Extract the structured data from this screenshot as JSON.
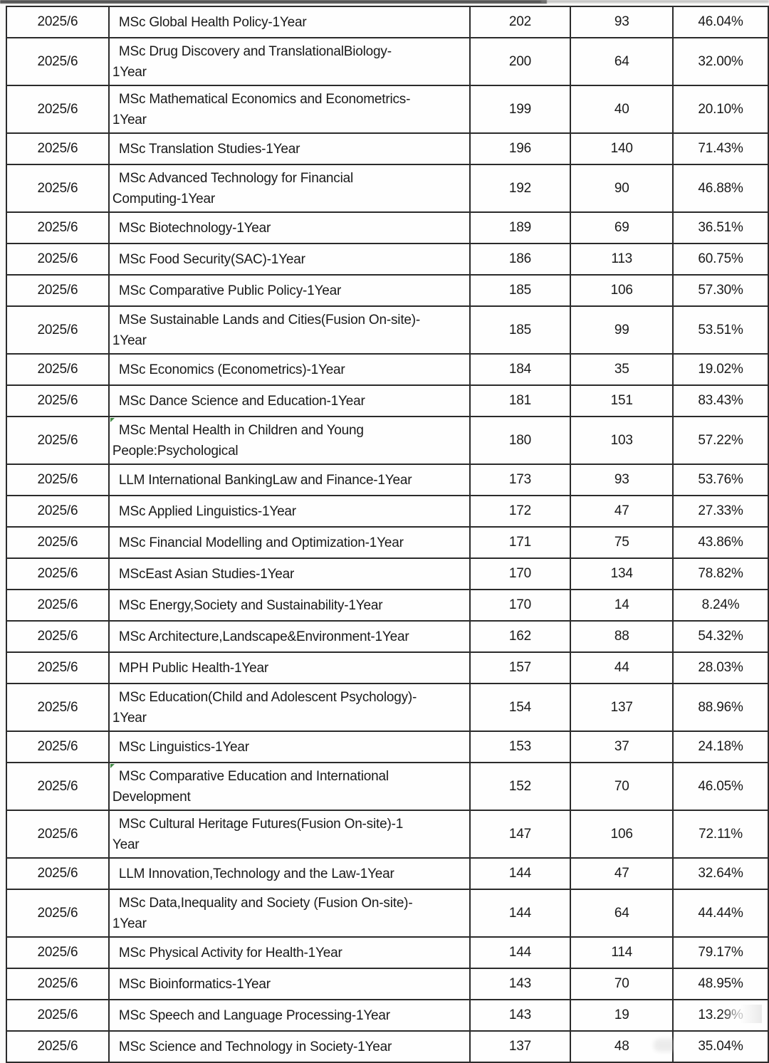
{
  "table": {
    "rows": [
      {
        "month": "2025/6",
        "program_lines": [
          "MSc Global Health Policy-1Year"
        ],
        "applicants": "202",
        "offers": "93",
        "rate": "46.04%"
      },
      {
        "month": "2025/6",
        "program_lines": [
          "MSc Drug Discovery and TranslationalBiology-",
          "1Year"
        ],
        "applicants": "200",
        "offers": "64",
        "rate": "32.00%"
      },
      {
        "month": "2025/6",
        "program_lines": [
          "MSc Mathematical Economics and Econometrics-",
          "1Year"
        ],
        "applicants": "199",
        "offers": "40",
        "rate": "20.10%"
      },
      {
        "month": "2025/6",
        "program_lines": [
          "MSc Translation Studies-1Year"
        ],
        "applicants": "196",
        "offers": "140",
        "rate": "71.43%"
      },
      {
        "month": "2025/6",
        "program_lines": [
          "MSc Advanced Technology for Financial",
          "Computing-1Year"
        ],
        "applicants": "192",
        "offers": "90",
        "rate": "46.88%"
      },
      {
        "month": "2025/6",
        "program_lines": [
          "MSc Biotechnology-1Year"
        ],
        "applicants": "189",
        "offers": "69",
        "rate": "36.51%"
      },
      {
        "month": "2025/6",
        "program_lines": [
          "MSc Food Security(SAC)-1Year"
        ],
        "applicants": "186",
        "offers": "113",
        "rate": "60.75%"
      },
      {
        "month": "2025/6",
        "program_lines": [
          "MSc Comparative Public Policy-1Year"
        ],
        "applicants": "185",
        "offers": "106",
        "rate": "57.30%"
      },
      {
        "month": "2025/6",
        "program_lines": [
          "MSe Sustainable Lands and Cities(Fusion On-site)-",
          "1Year"
        ],
        "applicants": "185",
        "offers": "99",
        "rate": "53.51%"
      },
      {
        "month": "2025/6",
        "program_lines": [
          "MSc Economics (Econometrics)-1Year"
        ],
        "applicants": "184",
        "offers": "35",
        "rate": "19.02%"
      },
      {
        "month": "2025/6",
        "program_lines": [
          "MSc Dance Science and Education-1Year"
        ],
        "applicants": "181",
        "offers": "151",
        "rate": "83.43%"
      },
      {
        "month": "2025/6",
        "program_lines": [
          "MSc Mental Health in Children and Young",
          "People:Psychological"
        ],
        "applicants": "180",
        "offers": "103",
        "rate": "57.22%"
      },
      {
        "month": "2025/6",
        "program_lines": [
          "LLM International BankingLaw and Finance-1Year"
        ],
        "applicants": "173",
        "offers": "93",
        "rate": "53.76%"
      },
      {
        "month": "2025/6",
        "program_lines": [
          "MSc Applied Linguistics-1Year"
        ],
        "applicants": "172",
        "offers": "47",
        "rate": "27.33%"
      },
      {
        "month": "2025/6",
        "program_lines": [
          "MSc Financial Modelling and Optimization-1Year"
        ],
        "applicants": "171",
        "offers": "75",
        "rate": "43.86%"
      },
      {
        "month": "2025/6",
        "program_lines": [
          "MScEast Asian Studies-1Year"
        ],
        "applicants": "170",
        "offers": "134",
        "rate": "78.82%"
      },
      {
        "month": "2025/6",
        "program_lines": [
          "MSc Energy,Society and Sustainability-1Year"
        ],
        "applicants": "170",
        "offers": "14",
        "rate": "8.24%"
      },
      {
        "month": "2025/6",
        "program_lines": [
          "MSc Architecture,Landscape&Environment-1Year"
        ],
        "applicants": "162",
        "offers": "88",
        "rate": "54.32%"
      },
      {
        "month": "2025/6",
        "program_lines": [
          "MPH Public Health-1Year"
        ],
        "applicants": "157",
        "offers": "44",
        "rate": "28.03%"
      },
      {
        "month": "2025/6",
        "program_lines": [
          "MSc Education(Child and Adolescent Psychology)-",
          "1Year"
        ],
        "applicants": "154",
        "offers": "137",
        "rate": "88.96%"
      },
      {
        "month": "2025/6",
        "program_lines": [
          "MSc Linguistics-1Year"
        ],
        "applicants": "153",
        "offers": "37",
        "rate": "24.18%"
      },
      {
        "month": "2025/6",
        "program_lines": [
          "MSc Comparative Education and International",
          "Development"
        ],
        "applicants": "152",
        "offers": "70",
        "rate": "46.05%"
      },
      {
        "month": "2025/6",
        "program_lines": [
          "MSc Cultural Heritage Futures(Fusion On-site)-1",
          "Year"
        ],
        "applicants": "147",
        "offers": "106",
        "rate": "72.11%"
      },
      {
        "month": "2025/6",
        "program_lines": [
          "LLM Innovation,Technology and the Law-1Year"
        ],
        "applicants": "144",
        "offers": "47",
        "rate": "32.64%"
      },
      {
        "month": "2025/6",
        "program_lines": [
          "MSc Data,Inequality and Society (Fusion On-site)-",
          "1Year"
        ],
        "applicants": "144",
        "offers": "64",
        "rate": "44.44%"
      },
      {
        "month": "2025/6",
        "program_lines": [
          "MSc Physical Activity for Health-1Year"
        ],
        "applicants": "144",
        "offers": "114",
        "rate": "79.17%"
      },
      {
        "month": "2025/6",
        "program_lines": [
          "MSc Bioinformatics-1Year"
        ],
        "applicants": "143",
        "offers": "70",
        "rate": "48.95%"
      },
      {
        "month": "2025/6",
        "program_lines": [
          "MSc Speech and Language Processing-1Year"
        ],
        "applicants": "143",
        "offers": "19",
        "rate": "13.29%"
      },
      {
        "month": "2025/6",
        "program_lines": [
          "MSc Science and Technology in Society-1Year"
        ],
        "applicants": "137",
        "offers": "48",
        "rate": "35.04%"
      }
    ]
  }
}
